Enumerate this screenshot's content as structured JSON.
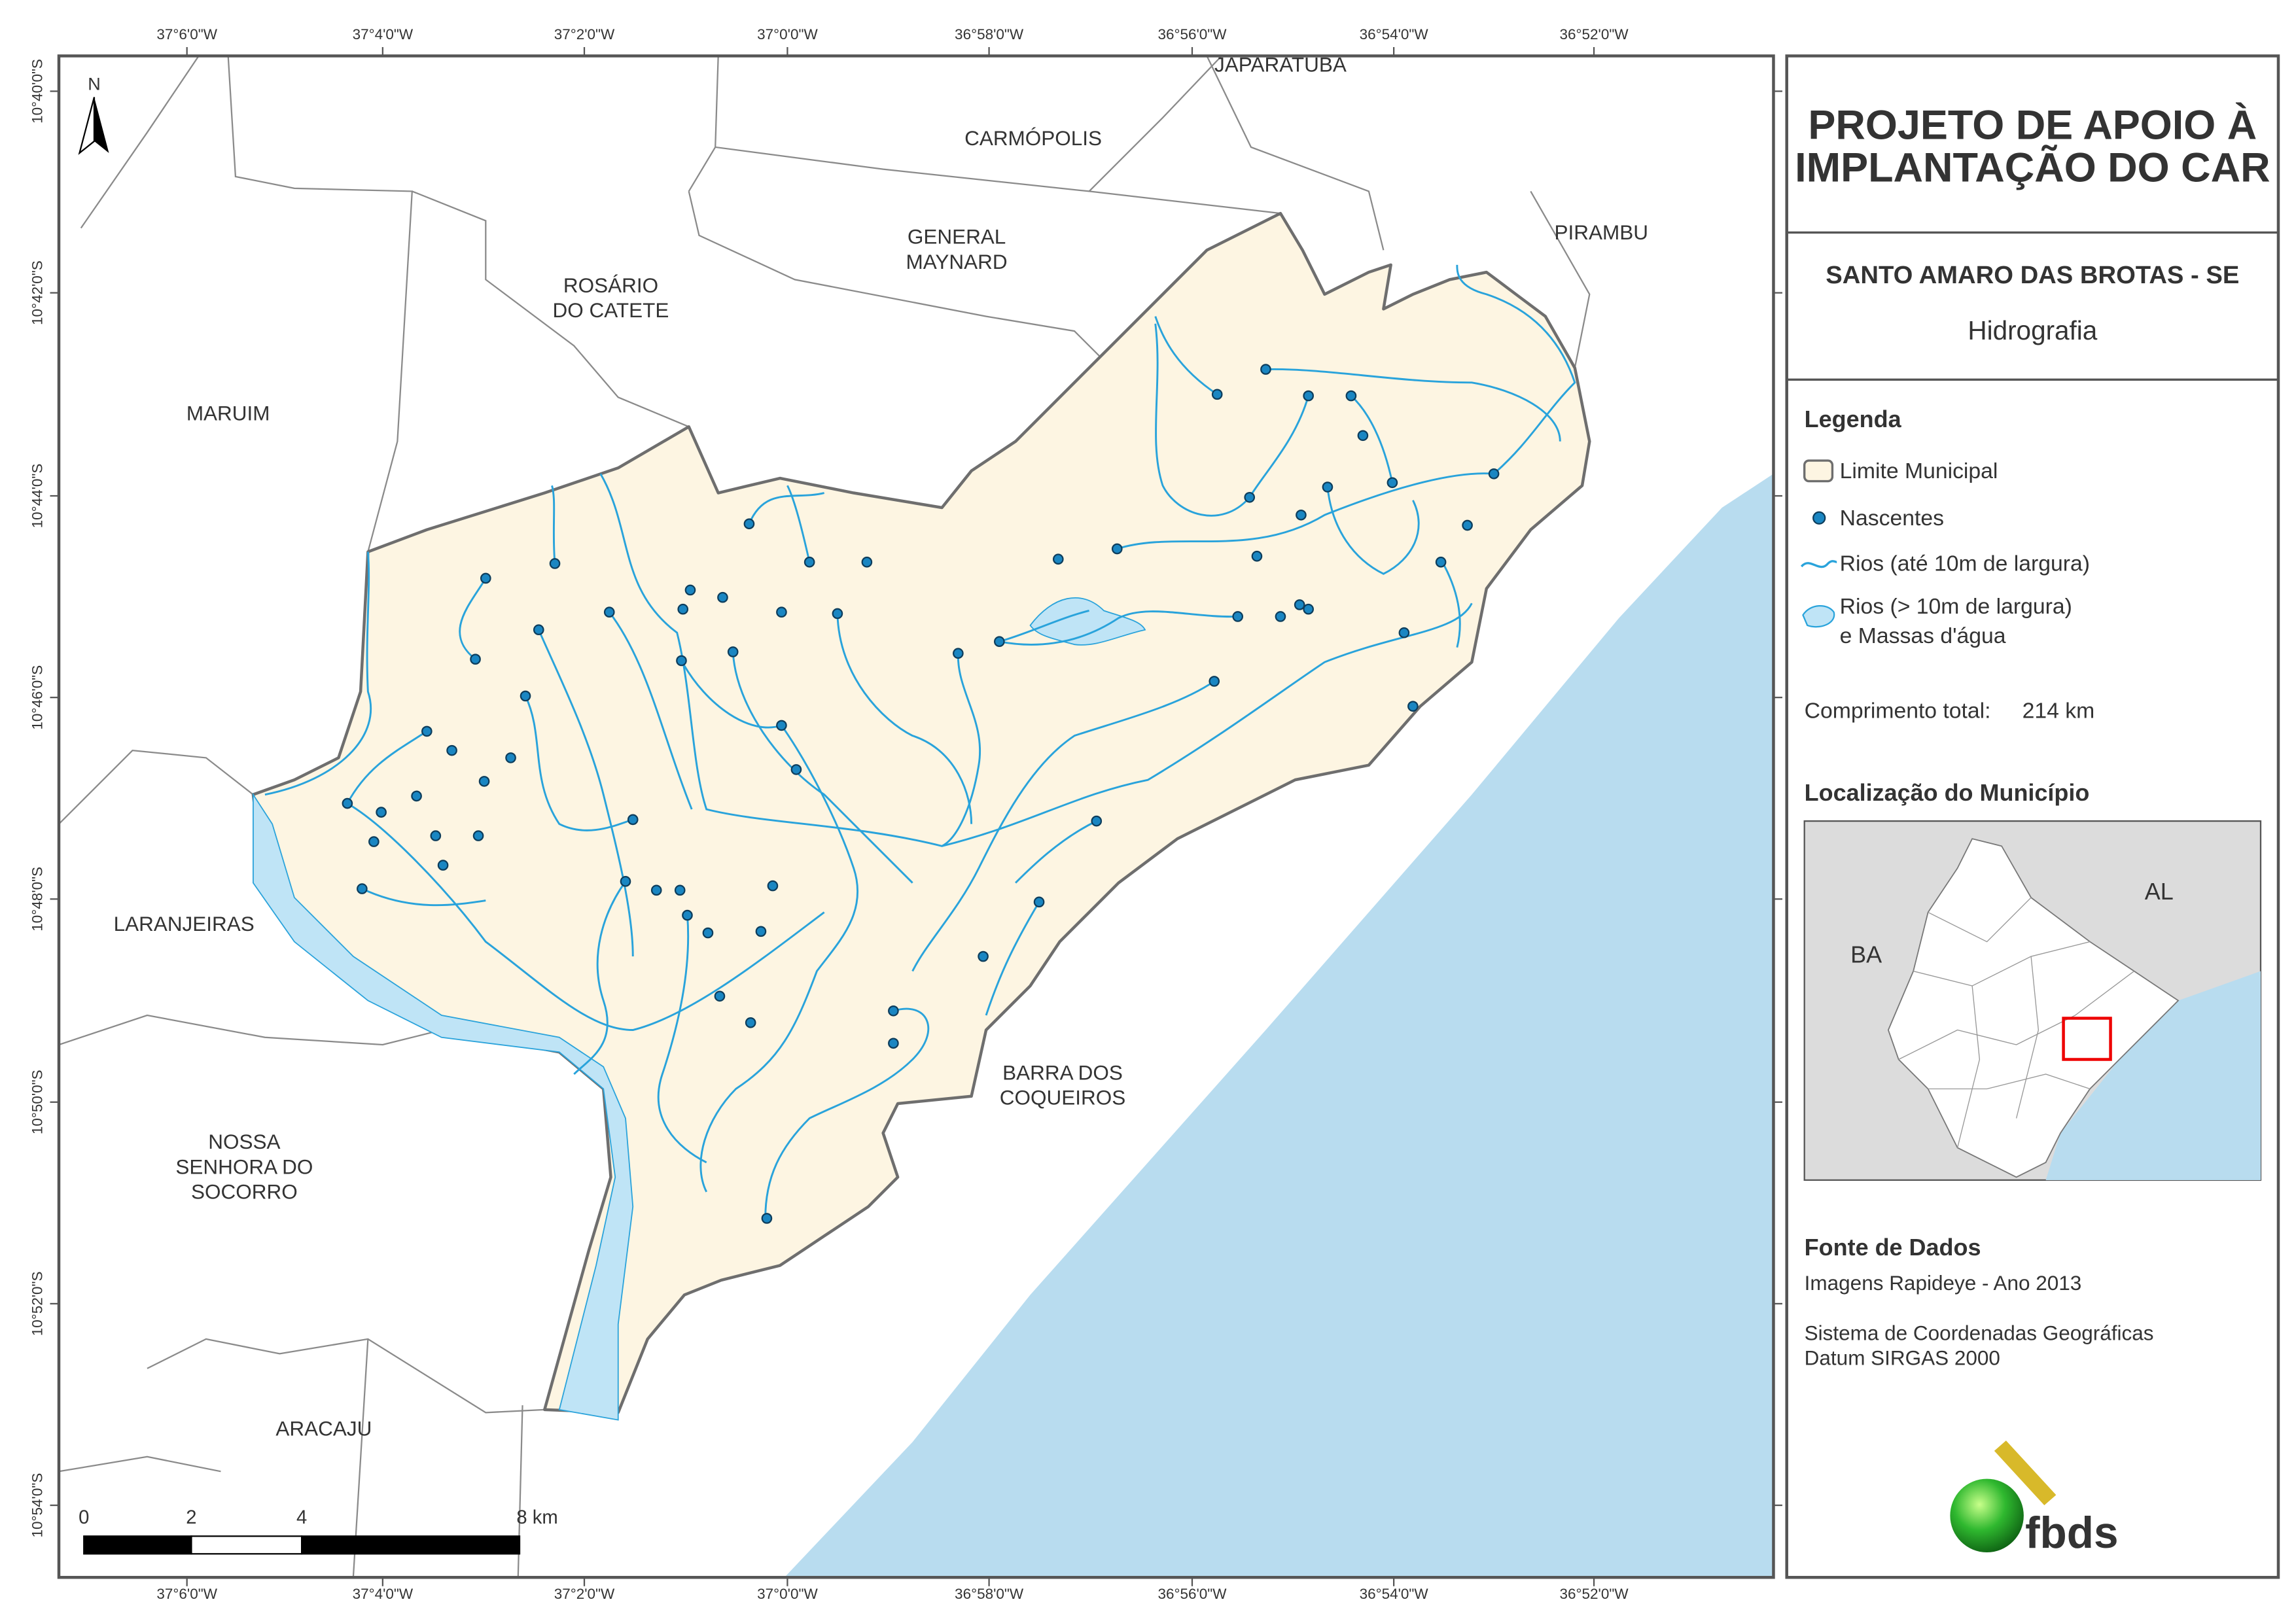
{
  "header": {
    "title": [
      "PROJETO DE APOIO À",
      "IMPLANTAÇÃO DO CAR"
    ],
    "municipality": "SANTO AMARO DAS BROTAS - SE",
    "theme": "Hidrografia"
  },
  "legend": {
    "title": "Legenda",
    "items": [
      "Limite Municipal",
      "Nascentes",
      "Rios (até 10m de largura)",
      [
        "Rios (> 10m de largura)",
        "e Massas d'água"
      ]
    ],
    "length_label": "Comprimento total:",
    "length_value": "214 km"
  },
  "location": {
    "title": "Localização do Município",
    "labels": [
      "BA",
      "AL"
    ]
  },
  "sources": {
    "title": "Fonte de Dados",
    "lines": [
      "Imagens Rapideye - Ano 2013",
      "Sistema de Coordenadas Geográficas",
      "Datum SIRGAS 2000"
    ]
  },
  "logo": "fbds",
  "map": {
    "longitude_ticks": [
      "37°6'0\"W",
      "37°4'0\"W",
      "37°2'0\"W",
      "37°0'0\"W",
      "36°58'0\"W",
      "36°56'0\"W",
      "36°54'0\"W",
      "36°52'0\"W"
    ],
    "latitude_ticks": [
      "10°40'0\"S",
      "10°42'0\"S",
      "10°44'0\"S",
      "10°46'0\"S",
      "10°48'0\"S",
      "10°50'0\"S",
      "10°52'0\"S",
      "10°54'0\"S"
    ],
    "places": [
      [
        "JAPARATUBA"
      ],
      [
        "CARMÓPOLIS"
      ],
      [
        "GENERAL",
        "MAYNARD"
      ],
      [
        "PIRAMBU"
      ],
      [
        "ROSÁRIO",
        "DO CATETE"
      ],
      [
        "MARUIM"
      ],
      [
        "LARANJEIRAS"
      ],
      [
        "BARRA DOS",
        "COQUEIROS"
      ],
      [
        "NOSSA",
        "SENHORA DO",
        "SOCORRO"
      ],
      [
        "ARACAJU"
      ]
    ],
    "north": "N",
    "scale": [
      "0",
      "2",
      "4",
      "8 km"
    ]
  }
}
